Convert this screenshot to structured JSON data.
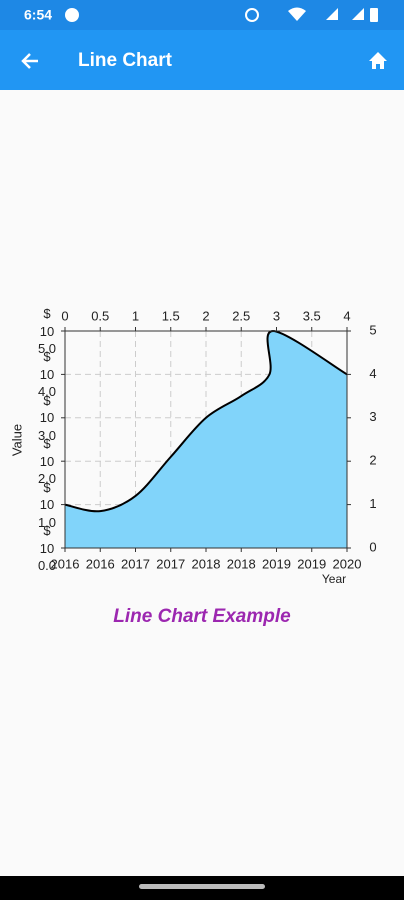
{
  "status_bar": {
    "time": "6:54"
  },
  "app_bar": {
    "title": "Line Chart"
  },
  "chart_data": {
    "type": "line",
    "title": "Line Chart Example",
    "xlabel": "Year",
    "ylabel": "Value",
    "x": [
      0,
      0.5,
      1,
      1.5,
      2,
      2.5,
      2.9,
      2.95,
      4
    ],
    "series": [
      {
        "color": "#000000",
        "fill": "#81d4fa",
        "values": [
          1,
          0.85,
          1.2,
          2.1,
          3,
          3.5,
          4,
          5,
          4
        ]
      }
    ],
    "xlim": [
      0,
      4
    ],
    "ylim": [
      0,
      5
    ],
    "y2lim": [
      0,
      5
    ],
    "xticks": [
      {
        "value": 0,
        "label": "2016"
      },
      {
        "value": 0.5,
        "label": "2016"
      },
      {
        "value": 1,
        "label": "2017"
      },
      {
        "value": 1.5,
        "label": "2017"
      },
      {
        "value": 2,
        "label": "2018"
      },
      {
        "value": 2.5,
        "label": "2018"
      },
      {
        "value": 3,
        "label": "2019"
      },
      {
        "value": 3.5,
        "label": "2019"
      },
      {
        "value": 4,
        "label": "2020"
      }
    ],
    "x2ticks": [
      0,
      0.5,
      1,
      1.5,
      2,
      2.5,
      3,
      3.5,
      4
    ],
    "yticks": [
      {
        "value": 0,
        "label": "$\n10\n0.0"
      },
      {
        "value": 1,
        "label": "$\n10\n1.0"
      },
      {
        "value": 2,
        "label": "$\n10\n2.0"
      },
      {
        "value": 3,
        "label": "$\n10\n3.0"
      },
      {
        "value": 4,
        "label": "$\n10\n4.0"
      },
      {
        "value": 5,
        "label": "$\n10\n5.0"
      }
    ],
    "y2ticks": [
      0,
      1,
      2,
      3,
      4,
      5
    ],
    "grid": true
  }
}
